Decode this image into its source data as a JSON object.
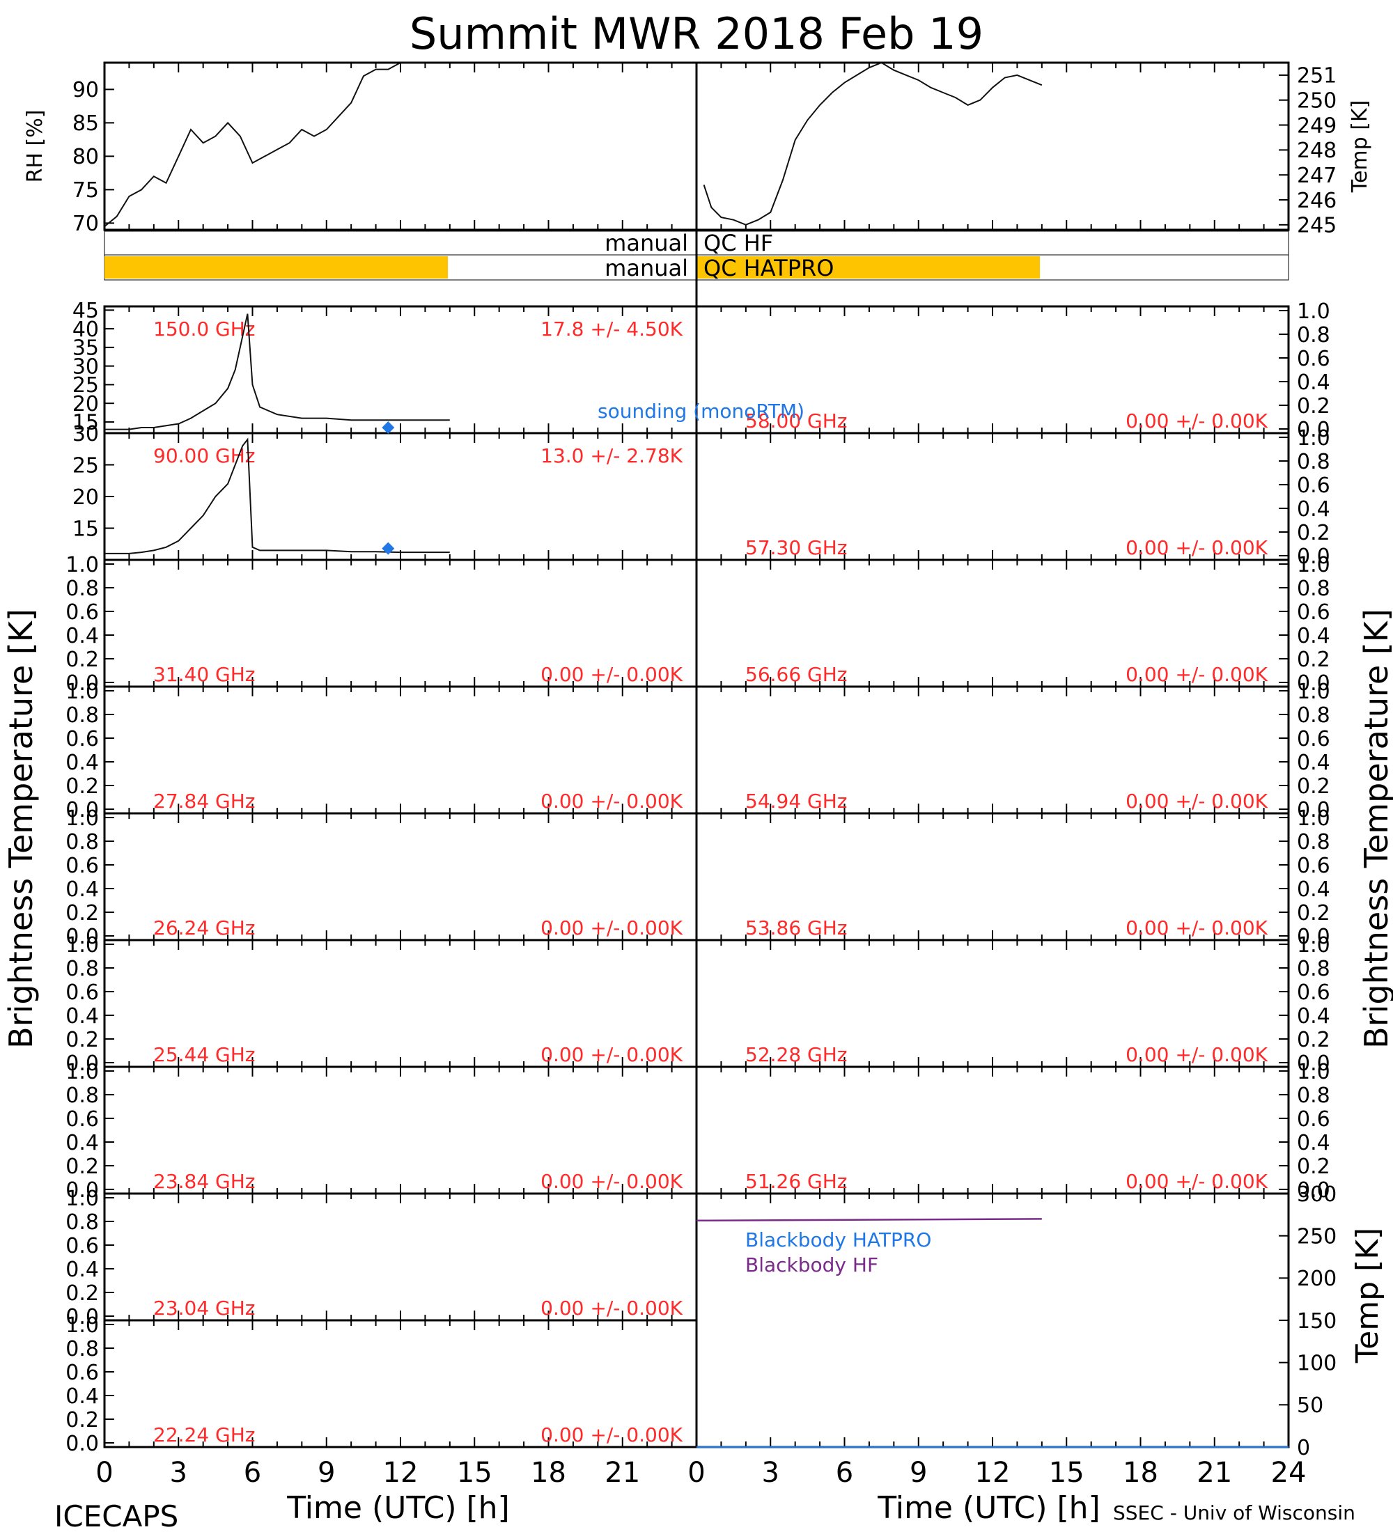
{
  "title": "Summit MWR 2018 Feb 19",
  "footer": {
    "left": "ICECAPS",
    "right": "SSEC - Univ of Wisconsin"
  },
  "colors": {
    "red": "#ff2a2a",
    "blue": "#1f78e6",
    "purple": "#7a2a8a",
    "qc_fill": "#ffc400",
    "trace": "#111111"
  },
  "x_axis": {
    "label": "Time (UTC) [h]",
    "ticks": [
      "0",
      "3",
      "6",
      "9",
      "12",
      "15",
      "18",
      "21"
    ],
    "ticks_right": [
      "0",
      "3",
      "6",
      "9",
      "12",
      "15",
      "18",
      "21",
      "24"
    ],
    "range": [
      0,
      24
    ]
  },
  "y_labels": {
    "left": "Brightness Temperature [K]",
    "right": "Brightness Temperature [K]"
  },
  "zero_ticks": [
    "0.0",
    "0.2",
    "0.4",
    "0.6",
    "0.8",
    "1.0"
  ],
  "top": {
    "rh": {
      "ylabel": "RH [%]",
      "ticks": [
        "70",
        "75",
        "80",
        "85",
        "90"
      ],
      "ylim": [
        69,
        94
      ]
    },
    "temp": {
      "ylabel": "Temp [K]",
      "ticks": [
        "245",
        "246",
        "247",
        "248",
        "249",
        "250",
        "251"
      ],
      "ylim": [
        244.8,
        251.5
      ]
    }
  },
  "qc": [
    {
      "label": "manual",
      "name": "QC HF",
      "left_frac": 0,
      "right_frac": 0
    },
    {
      "label": "manual",
      "name": "QC HATPRO",
      "left_frac": 0.58,
      "right_frac": 0.58
    }
  ],
  "legend": {
    "sounding": "sounding (monoRTM)",
    "bb_hatpro": "Blackbody HATPRO",
    "bb_hf": "Blackbody HF"
  },
  "bb": {
    "ylabel": "Temp [K]",
    "ticks": [
      "0",
      "50",
      "100",
      "150",
      "200",
      "250",
      "300"
    ],
    "ylim": [
      0,
      300
    ]
  },
  "panels_left": [
    {
      "freq": "150.0 GHz",
      "stat": "17.8 +/-  4.50K",
      "ticks": [
        "15",
        "20",
        "25",
        "30",
        "35",
        "40",
        "45"
      ],
      "ylim": [
        12,
        46
      ]
    },
    {
      "freq": "90.00 GHz",
      "stat": "13.0 +/-  2.78K",
      "ticks": [
        "15",
        "20",
        "25",
        "30"
      ],
      "ylim": [
        10,
        30
      ]
    },
    {
      "freq": "31.40 GHz",
      "stat": "0.00 +/-  0.00K"
    },
    {
      "freq": "27.84 GHz",
      "stat": "0.00 +/-  0.00K"
    },
    {
      "freq": "26.24 GHz",
      "stat": "0.00 +/-  0.00K"
    },
    {
      "freq": "25.44 GHz",
      "stat": "0.00 +/-  0.00K"
    },
    {
      "freq": "23.84 GHz",
      "stat": "0.00 +/-  0.00K"
    },
    {
      "freq": "23.04 GHz",
      "stat": "0.00 +/-  0.00K"
    },
    {
      "freq": "22.24 GHz",
      "stat": "0.00 +/-  0.00K"
    }
  ],
  "panels_right": [
    {
      "freq": "58.00 GHz",
      "stat": "0.00 +/-  0.00K"
    },
    {
      "freq": "57.30 GHz",
      "stat": "0.00 +/-  0.00K"
    },
    {
      "freq": "56.66 GHz",
      "stat": "0.00 +/-  0.00K"
    },
    {
      "freq": "54.94 GHz",
      "stat": "0.00 +/-  0.00K"
    },
    {
      "freq": "53.86 GHz",
      "stat": "0.00 +/-  0.00K"
    },
    {
      "freq": "52.28 GHz",
      "stat": "0.00 +/-  0.00K"
    },
    {
      "freq": "51.26 GHz",
      "stat": "0.00 +/-  0.00K"
    }
  ],
  "chart_data": [
    {
      "type": "line",
      "name_id": "rh",
      "x": [
        0,
        0.5,
        1,
        1.5,
        2,
        2.5,
        3,
        3.5,
        4,
        4.5,
        5,
        5.5,
        6,
        6.5,
        7,
        7.5,
        8,
        8.5,
        9,
        9.5,
        10,
        10.5,
        11,
        11.5,
        12,
        12.5,
        13
      ],
      "y": [
        69.5,
        71,
        74,
        75,
        77,
        76,
        80,
        84,
        82,
        83,
        85,
        83,
        79,
        80,
        81,
        82,
        84,
        83,
        84,
        86,
        88,
        92,
        93,
        93,
        94,
        94,
        94
      ],
      "ylim": [
        69,
        94
      ],
      "xlim": [
        0,
        24
      ]
    },
    {
      "type": "line",
      "name_id": "temp",
      "x": [
        0.3,
        0.6,
        1,
        1.5,
        2,
        2.5,
        3,
        3.5,
        4,
        4.5,
        5,
        5.5,
        6,
        6.5,
        7,
        7.5,
        8,
        8.5,
        9,
        9.5,
        10,
        10.5,
        11,
        11.5,
        12,
        12.5,
        13,
        13.5,
        14
      ],
      "y": [
        246.6,
        245.7,
        245.3,
        245.2,
        245.0,
        245.2,
        245.5,
        246.8,
        248.4,
        249.2,
        249.8,
        250.3,
        250.7,
        251.0,
        251.3,
        251.5,
        251.2,
        251.0,
        250.8,
        250.5,
        250.3,
        250.1,
        249.8,
        250.0,
        250.5,
        250.9,
        251.0,
        250.8,
        250.6
      ],
      "ylim": [
        244.8,
        251.5
      ],
      "xlim": [
        0,
        24
      ]
    },
    {
      "type": "line",
      "name_id": "tb150",
      "x": [
        0,
        0.5,
        1,
        1.5,
        2,
        2.5,
        3,
        3.5,
        4,
        4.5,
        5,
        5.3,
        5.6,
        5.8,
        6,
        6.3,
        7,
        8,
        9,
        10,
        11,
        12,
        13,
        14
      ],
      "y": [
        13,
        13,
        13,
        13.5,
        13.5,
        14,
        14.5,
        16,
        18,
        20,
        24,
        29,
        38,
        44,
        25,
        19,
        17,
        16,
        16,
        15.5,
        15.5,
        15.5,
        15.5,
        15.5
      ],
      "ylim": [
        12,
        46
      ],
      "xlim": [
        0,
        24
      ]
    },
    {
      "type": "line",
      "name_id": "tb90",
      "x": [
        0,
        0.5,
        1,
        1.5,
        2,
        2.5,
        3,
        3.5,
        4,
        4.5,
        5,
        5.3,
        5.6,
        5.8,
        6,
        6.3,
        7,
        8,
        9,
        10,
        11,
        12,
        13,
        14
      ],
      "y": [
        11,
        11,
        11,
        11.2,
        11.5,
        12,
        13,
        15,
        17,
        20,
        22,
        25,
        28,
        29,
        12,
        11.5,
        11.5,
        11.5,
        11.5,
        11.3,
        11.3,
        11.2,
        11.2,
        11.2
      ],
      "ylim": [
        10,
        30
      ],
      "xlim": [
        0,
        24
      ]
    },
    {
      "type": "scatter",
      "name_id": "sounding",
      "x": [
        11.5
      ],
      "y150": [
        13.5
      ],
      "y90": [
        11.8
      ]
    },
    {
      "type": "line",
      "name_id": "bb_hf",
      "x": [
        0,
        14
      ],
      "y": [
        268,
        270
      ],
      "ylim": [
        0,
        300
      ]
    },
    {
      "type": "line",
      "name_id": "bb_hatpro",
      "x": [
        0,
        24
      ],
      "y": [
        0,
        0
      ],
      "ylim": [
        0,
        300
      ]
    }
  ]
}
